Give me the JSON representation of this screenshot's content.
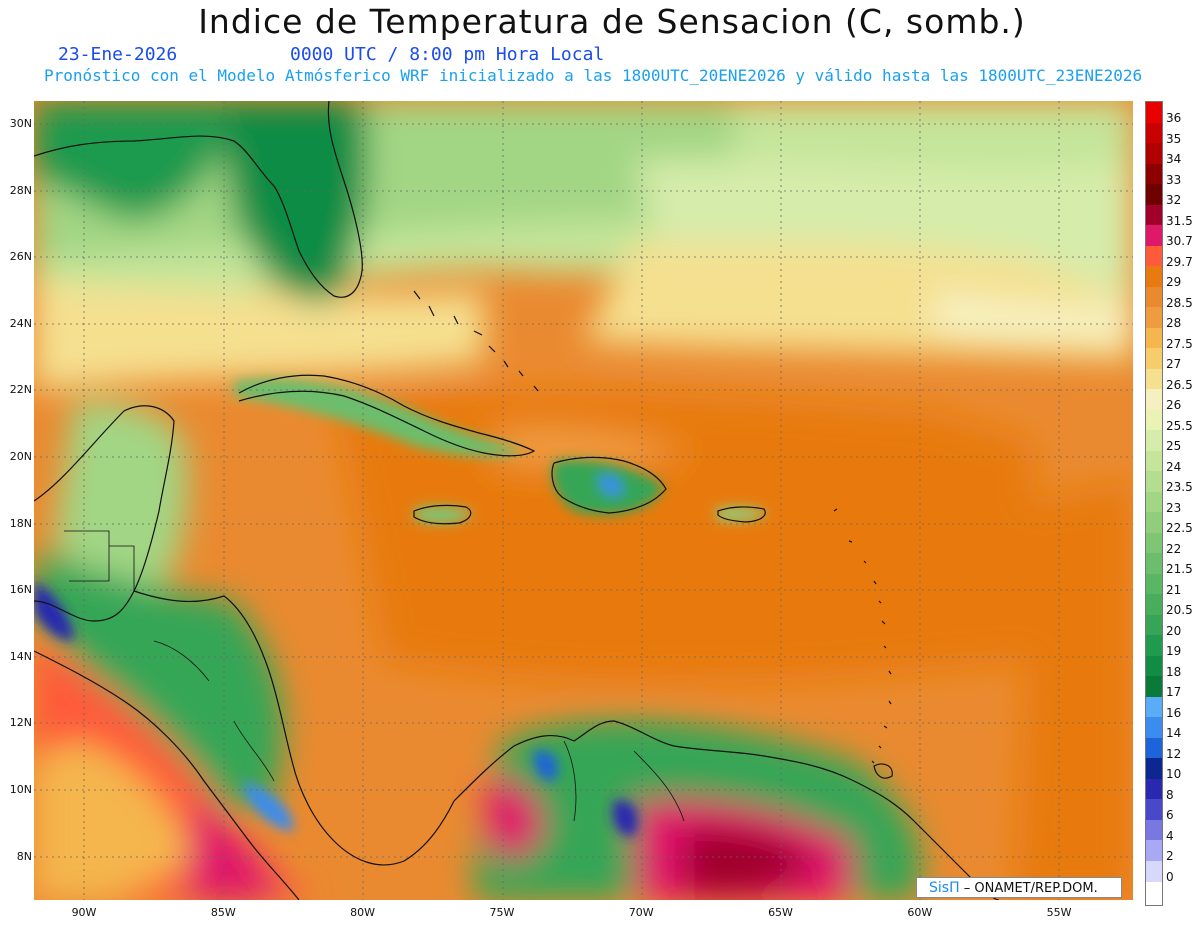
{
  "title": "Indice de Temperatura de Sensacion (C, somb.)",
  "date": "23-Ene-2026",
  "time": "0000 UTC / 8:00 pm Hora Local",
  "model_info": "Pronóstico con el Modelo Atmósferico WRF inicializado a las 1800UTC_20ENE2026 y válido hasta las  1800UTC_23ENE2026",
  "credit": {
    "brand": "SisΠ",
    "text": "– ONAMET/REP.DOM."
  },
  "map": {
    "lat_labels": [
      "30N",
      "28N",
      "26N",
      "24N",
      "22N",
      "20N",
      "18N",
      "16N",
      "14N",
      "12N",
      "10N",
      "8N"
    ],
    "lon_labels": [
      "90W",
      "85W",
      "80W",
      "75W",
      "70W",
      "65W",
      "60W",
      "55W"
    ]
  },
  "colorbar": {
    "levels": [
      "36",
      "35",
      "34",
      "33",
      "32",
      "31.5",
      "30.7",
      "29.7",
      "29",
      "28.5",
      "28",
      "27.5",
      "27",
      "26.5",
      "26",
      "25.5",
      "25",
      "24",
      "23.5",
      "23",
      "22.5",
      "22",
      "21.5",
      "21",
      "20.5",
      "20",
      "19",
      "18",
      "17",
      "16",
      "14",
      "12",
      "10",
      "8",
      "6",
      "4",
      "2",
      "0"
    ],
    "colors": [
      "#e60000",
      "#c80000",
      "#b00000",
      "#8c0000",
      "#6e0000",
      "#a0002a",
      "#e0186a",
      "#ff5a3a",
      "#e87a10",
      "#ea8a30",
      "#ef9c40",
      "#f5b64e",
      "#f7cc6a",
      "#f5e090",
      "#f6f0c0",
      "#eaf2b4",
      "#d6ecaa",
      "#c4e59a",
      "#b4de8e",
      "#a2d684",
      "#90ce7c",
      "#7ec674",
      "#6cbe6c",
      "#5ab664",
      "#48ae5c",
      "#36a656",
      "#1f9a4e",
      "#108c44",
      "#0a7a3a",
      "#5aacf6",
      "#3a8cee",
      "#1c64d8",
      "#0c2890",
      "#2828b0",
      "#4848c8",
      "#7878e0",
      "#a8a8f4",
      "#d8d8fc"
    ]
  }
}
